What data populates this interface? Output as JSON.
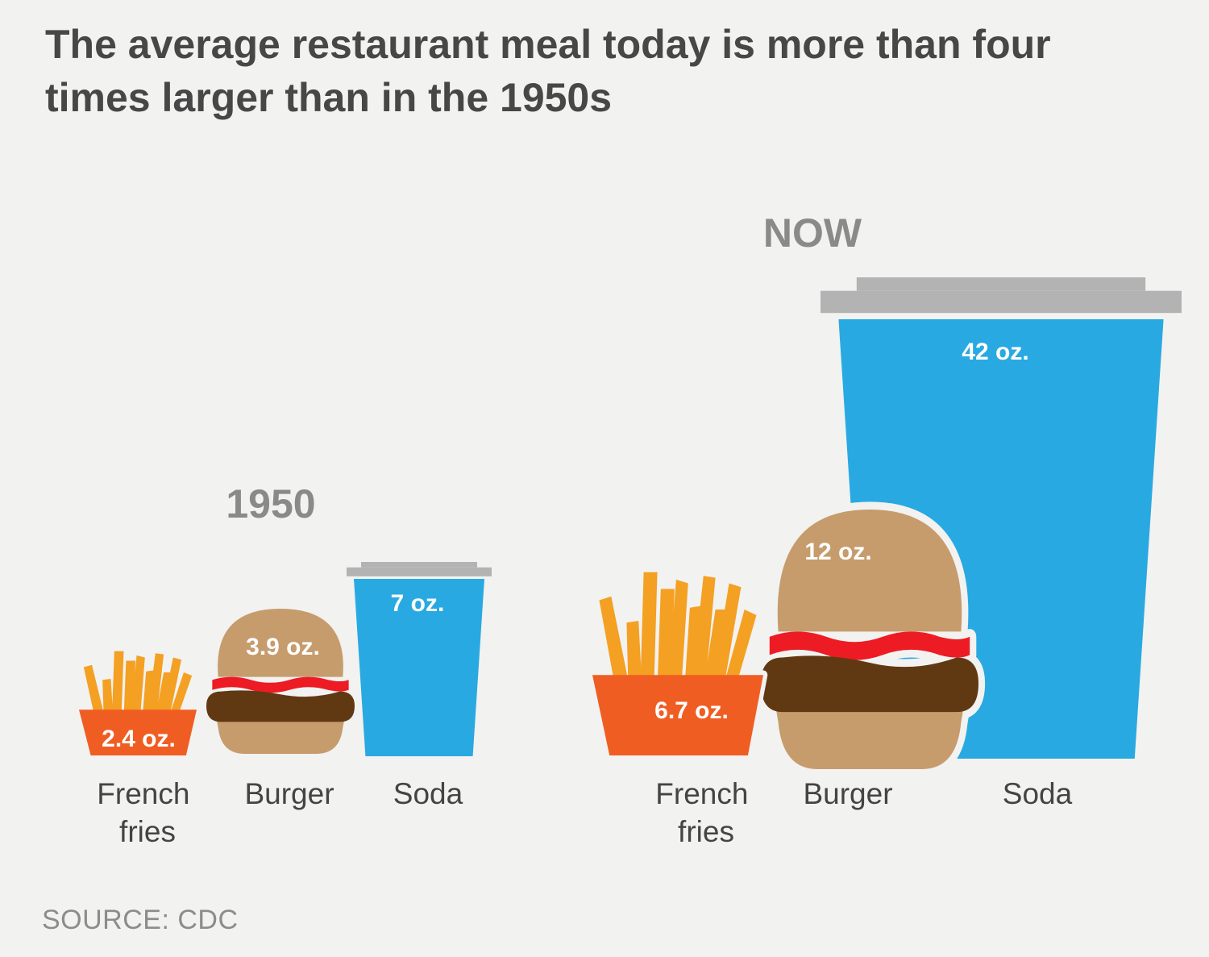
{
  "title": "The average restaurant meal today is more than four times larger than in the 1950s",
  "source": "SOURCE: CDC",
  "colors": {
    "background": "#f2f2f1",
    "fries": "#f4a022",
    "fries_box": "#f05d23",
    "bun": "#c69c6d",
    "ketchup": "#ed1c24",
    "patty": "#603913",
    "soda": "#29a9e1",
    "lid": "#b3b3b3"
  },
  "chart_data": {
    "type": "pictorial-bar",
    "unit": "oz.",
    "categories": [
      "French fries",
      "Burger",
      "Soda"
    ],
    "groups": [
      {
        "label": "1950",
        "items": [
          {
            "category_line1": "French",
            "category_line2": "fries",
            "value": 2.4,
            "value_label": "2.4 oz.",
            "icon": "fries-icon"
          },
          {
            "category_line1": "Burger",
            "category_line2": "",
            "value": 3.9,
            "value_label": "3.9 oz.",
            "icon": "burger-icon"
          },
          {
            "category_line1": "Soda",
            "category_line2": "",
            "value": 7,
            "value_label": "7 oz.",
            "icon": "soda-cup-icon"
          }
        ]
      },
      {
        "label": "NOW",
        "items": [
          {
            "category_line1": "French",
            "category_line2": "fries",
            "value": 6.7,
            "value_label": "6.7 oz.",
            "icon": "fries-icon"
          },
          {
            "category_line1": "Burger",
            "category_line2": "",
            "value": 12,
            "value_label": "12 oz.",
            "icon": "burger-icon"
          },
          {
            "category_line1": "Soda",
            "category_line2": "",
            "value": 42,
            "value_label": "42 oz.",
            "icon": "soda-cup-icon"
          }
        ]
      }
    ]
  }
}
